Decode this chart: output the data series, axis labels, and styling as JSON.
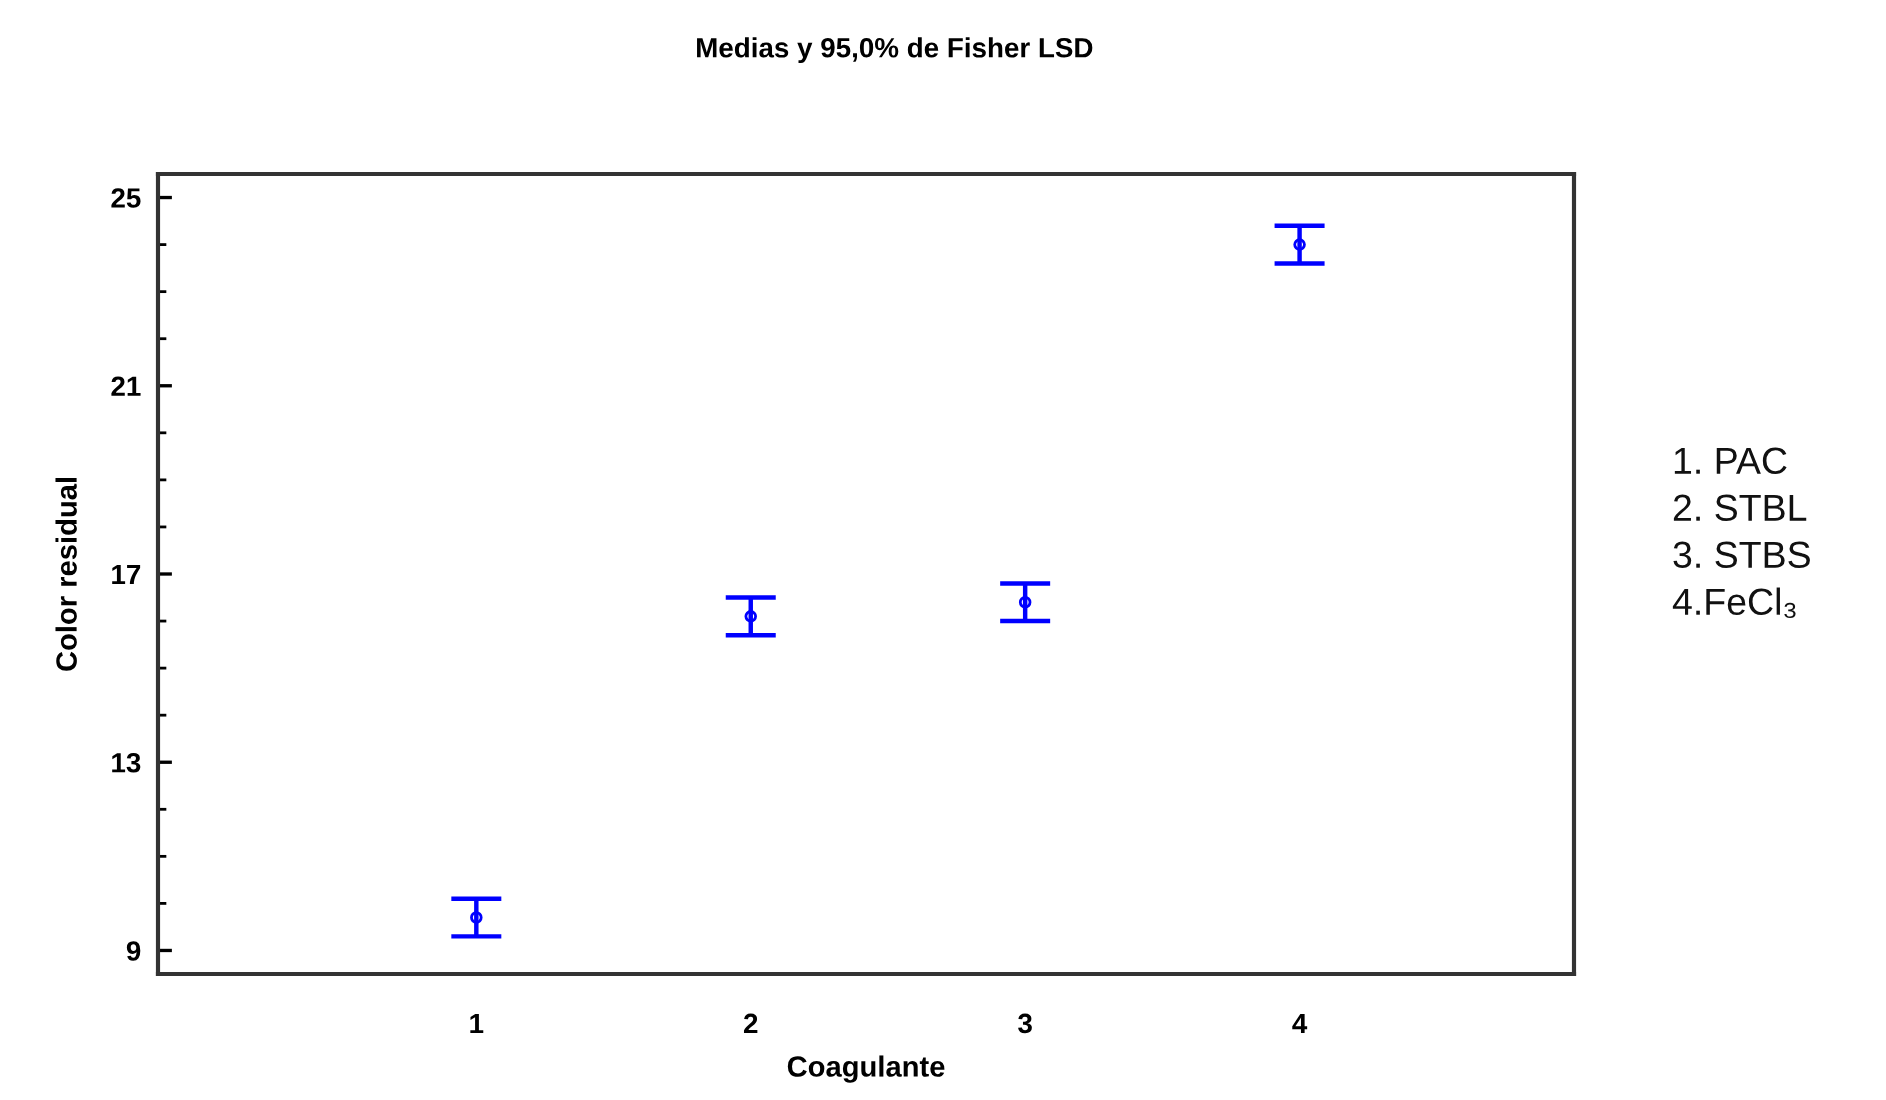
{
  "chart_data": {
    "type": "scatter",
    "title": "Medias y 95,0% de Fisher LSD",
    "xlabel": "Coagulante",
    "ylabel": "Color residual",
    "categories": [
      "1",
      "2",
      "3",
      "4"
    ],
    "series": [
      {
        "color": "#0000ff",
        "values": [
          9.7,
          16.1,
          16.4,
          24.0
        ],
        "errors": [
          0.4,
          0.4,
          0.4,
          0.4
        ]
      }
    ],
    "ylim": [
      8.5,
      25.5
    ],
    "yticks": [
      9,
      13,
      17,
      21,
      25
    ],
    "grid": false,
    "marker": "circle",
    "annotations": [
      "1. PAC",
      "2. STBL",
      "3. STBS",
      "4.FeCl₃"
    ]
  }
}
